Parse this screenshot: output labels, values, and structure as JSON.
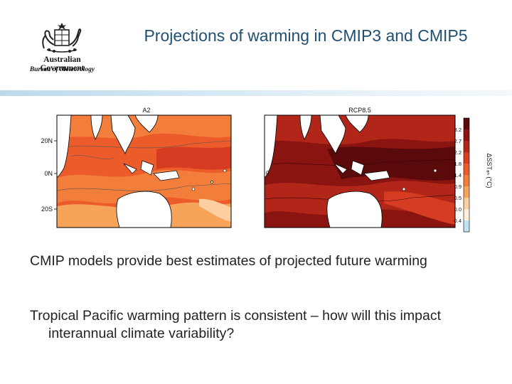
{
  "logo": {
    "line1": "Australian Government",
    "line2": "Bureau of Meteorology",
    "icon": "coat-of-arms-icon"
  },
  "title": "Projections of warming in CMIP3 and CMIP5",
  "figure": {
    "left_panel_title": "A2",
    "right_panel_title": "RCP8.5",
    "lat_labels": [
      "20N",
      "0N",
      "20S"
    ],
    "contour_zero_label": "0",
    "colorbar_ticks": [
      "3.2",
      "2.7",
      "2.2",
      "1.8",
      "1.4",
      "0.9",
      "0.5",
      "0.0",
      "-0.4"
    ],
    "colorbar_colors": [
      "#5a0a0a",
      "#8a1410",
      "#b2261a",
      "#d63c22",
      "#ec5b2a",
      "#f37d3a",
      "#f8a35a",
      "#fbcfa0",
      "#fdeede",
      "#bfe3ef"
    ],
    "colorbar_label": "ΔSSTₐₙ (°C)"
  },
  "bullets": [
    "CMIP models provide best estimates of projected future warming",
    "Tropical Pacific warming pattern is consistent – how will this impact interannual climate variability?"
  ]
}
